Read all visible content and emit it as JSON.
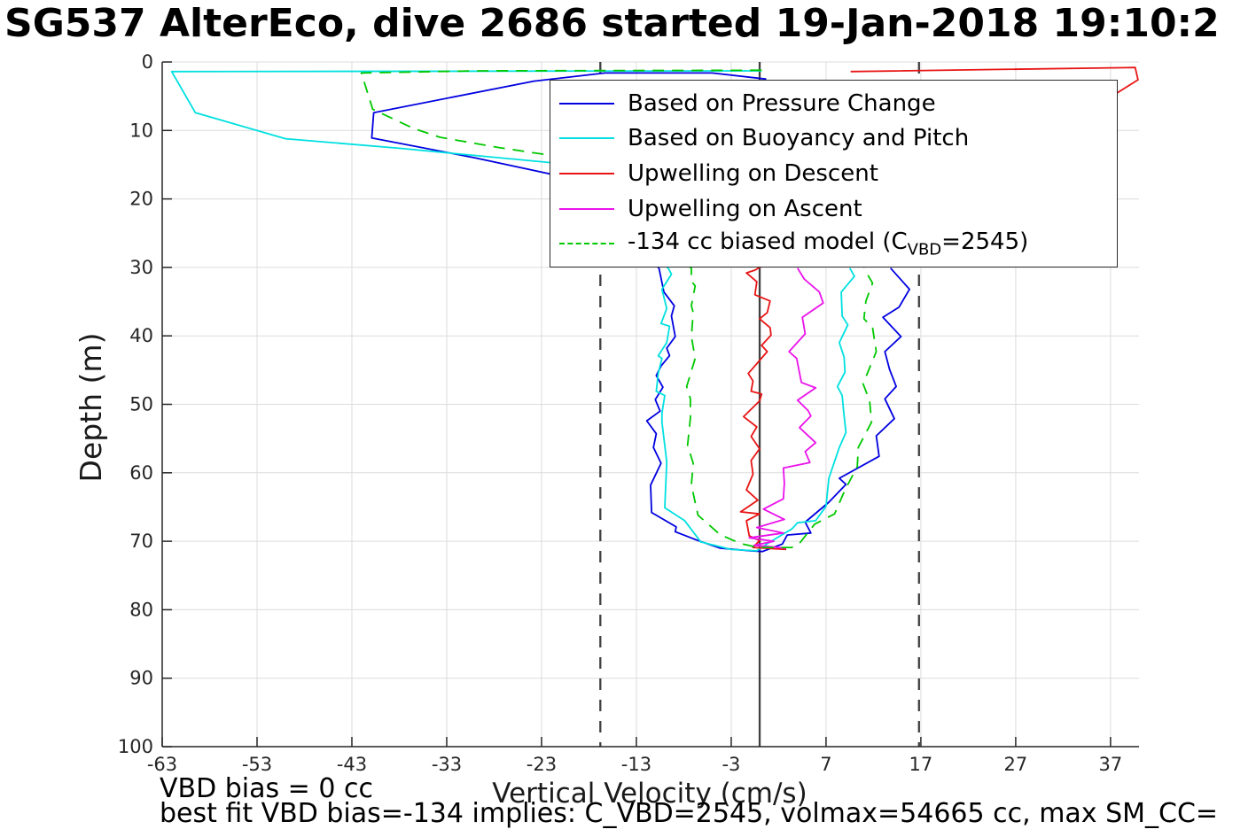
{
  "title": "SG537 AlterEco, dive 2686 started 19-Jan-2018 19:10:2",
  "annotations": {
    "vbd_bias": "VBD bias = 0 cc",
    "best_fit": "best fit VBD bias=-134 implies: C_VBD=2545, volmax=54665 cc, max SM_CC="
  },
  "chart_data": {
    "type": "line",
    "xlabel": "Vertical Velocity (cm/s)",
    "ylabel": "Depth (m)",
    "xlim": [
      -63,
      40
    ],
    "ylim": [
      0,
      100
    ],
    "xticks": [
      -63,
      -53,
      -43,
      -33,
      -23,
      -13,
      -3,
      7,
      17,
      27,
      37
    ],
    "yticks": [
      0,
      10,
      20,
      30,
      40,
      50,
      60,
      70,
      80,
      90,
      100
    ],
    "grid": true,
    "y_axis_reversed": true,
    "legend_position": "upper-right-inside",
    "colors": {
      "grid": "#dcdcdc",
      "axis": "#262626",
      "reference": "#404040"
    },
    "reference_lines": {
      "solid_x": 0,
      "dashed_x": [
        -16.8,
        16.8
      ]
    },
    "series": [
      {
        "key": "pressure",
        "name": "Based on Pressure Change",
        "color": "#0000e0",
        "dash": false,
        "points": [
          [
            0.7,
            2.5
          ],
          [
            -5,
            1.6
          ],
          [
            -16.3,
            1.6
          ],
          [
            -23.8,
            2.8
          ],
          [
            -40.7,
            7.4
          ],
          [
            -40.9,
            11.1
          ],
          [
            -30,
            14
          ],
          [
            -19.2,
            17.2
          ],
          [
            -13.5,
            24
          ],
          [
            -10.6,
            30.2
          ],
          [
            -10.1,
            33.6
          ],
          [
            -9,
            35.6
          ],
          [
            -9.3,
            37.1
          ],
          [
            -8.9,
            40.1
          ],
          [
            -9.8,
            41.8
          ],
          [
            -9.5,
            42.9
          ],
          [
            -10.4,
            44.4
          ],
          [
            -10.9,
            45.8
          ],
          [
            -10.2,
            47.5
          ],
          [
            -11,
            49.3
          ],
          [
            -10.5,
            51
          ],
          [
            -11.9,
            52.4
          ],
          [
            -10.9,
            54.3
          ],
          [
            -11.2,
            56.3
          ],
          [
            -10.4,
            58.6
          ],
          [
            -11.5,
            61.8
          ],
          [
            -11.4,
            65.8
          ],
          [
            -8.8,
            67.9
          ],
          [
            -8.9,
            68.6
          ],
          [
            -6.5,
            69.9
          ],
          [
            -4.2,
            71
          ],
          [
            -1,
            71.4
          ],
          [
            0.3,
            71.5
          ],
          [
            2.4,
            70.4
          ],
          [
            2.9,
            69.1
          ],
          [
            5.4,
            68.8
          ],
          [
            4.8,
            67.2
          ],
          [
            7.3,
            64.3
          ],
          [
            9.1,
            61.7
          ],
          [
            8.4,
            60.8
          ],
          [
            12.6,
            57.6
          ],
          [
            12.3,
            54.6
          ],
          [
            14.2,
            52.1
          ],
          [
            13.2,
            49.2
          ],
          [
            14.4,
            47.4
          ],
          [
            13.7,
            44.9
          ],
          [
            13.2,
            42.3
          ],
          [
            14.9,
            40.1
          ],
          [
            13,
            37.3
          ],
          [
            14.7,
            35.8
          ],
          [
            15.8,
            33.2
          ],
          [
            13.8,
            30.1
          ]
        ]
      },
      {
        "key": "buoyancy_pitch",
        "name": "Based on Buoyancy and Pitch",
        "color": "#00e0e0",
        "dash": false,
        "points": [
          [
            0.2,
            1.3
          ],
          [
            -62,
            1.4
          ],
          [
            -59.5,
            7.4
          ],
          [
            -50,
            11.2
          ],
          [
            -38,
            12.6
          ],
          [
            -19,
            15.1
          ],
          [
            -14.5,
            23
          ],
          [
            -9.6,
            30.2
          ],
          [
            -9.3,
            31
          ],
          [
            -10.3,
            33.2
          ],
          [
            -9.8,
            36
          ],
          [
            -10.4,
            38.2
          ],
          [
            -9.5,
            38.6
          ],
          [
            -9.8,
            41
          ],
          [
            -10.7,
            42.9
          ],
          [
            -10.3,
            43.3
          ],
          [
            -10.7,
            45.5
          ],
          [
            -10.9,
            48.1
          ],
          [
            -10,
            48.7
          ],
          [
            -10.3,
            51.3
          ],
          [
            -10.3,
            52.6
          ],
          [
            -9.8,
            58.4
          ],
          [
            -10,
            65.1
          ],
          [
            -7.9,
            67
          ],
          [
            -6.2,
            70.1
          ],
          [
            -3,
            71.2
          ],
          [
            -0.3,
            71.4
          ],
          [
            1.1,
            70.1
          ],
          [
            3.4,
            68.2
          ],
          [
            4,
            67.3
          ],
          [
            5.9,
            67
          ],
          [
            7,
            64.9
          ],
          [
            7.3,
            60.8
          ],
          [
            8.4,
            56.3
          ],
          [
            9.1,
            54.1
          ],
          [
            8.9,
            51.7
          ],
          [
            8.7,
            48.7
          ],
          [
            8.2,
            47.4
          ],
          [
            9,
            45.3
          ],
          [
            8.9,
            43.1
          ],
          [
            8.4,
            41
          ],
          [
            9.3,
            38.4
          ],
          [
            8.7,
            37.1
          ],
          [
            8.6,
            33.6
          ],
          [
            10,
            31.3
          ],
          [
            9.5,
            30.1
          ]
        ]
      },
      {
        "key": "upwelling_descent",
        "name": "Upwelling on Descent",
        "color": "#e81414",
        "dash": false,
        "points": [
          [
            9.6,
            1.4
          ],
          [
            39.6,
            0.8
          ],
          [
            39.9,
            2.6
          ],
          [
            36,
            6
          ],
          [
            20,
            16
          ],
          [
            5,
            26
          ],
          [
            -0.5,
            30.4
          ],
          [
            -1.4,
            30.8
          ],
          [
            -0.3,
            32.1
          ],
          [
            -0.5,
            34
          ],
          [
            1.1,
            34.9
          ],
          [
            0.8,
            36.6
          ],
          [
            0,
            37.5
          ],
          [
            1.1,
            38.8
          ],
          [
            1.2,
            39.9
          ],
          [
            0.2,
            41.4
          ],
          [
            0.8,
            42.3
          ],
          [
            -1.2,
            45.5
          ],
          [
            -0.7,
            46.6
          ],
          [
            -0.9,
            48.1
          ],
          [
            0.2,
            48.5
          ],
          [
            0,
            49.5
          ],
          [
            -1.7,
            51.8
          ],
          [
            -0.3,
            53.3
          ],
          [
            -0.9,
            54.7
          ],
          [
            0,
            56.5
          ],
          [
            -0.9,
            58.2
          ],
          [
            -0.7,
            60.2
          ],
          [
            -1.4,
            62.5
          ],
          [
            -0.2,
            64
          ],
          [
            -2,
            65.7
          ],
          [
            0,
            66
          ],
          [
            -1.4,
            67
          ],
          [
            -1.1,
            69.2
          ],
          [
            0,
            69.9
          ],
          [
            -0.7,
            70.9
          ],
          [
            2.8,
            71.2
          ]
        ]
      },
      {
        "key": "upwelling_ascent",
        "name": "Upwelling on Ascent",
        "color": "#ea12ea",
        "dash": false,
        "points": [
          [
            4,
            30.1
          ],
          [
            4.7,
            31.7
          ],
          [
            6.3,
            33.6
          ],
          [
            6.7,
            35.2
          ],
          [
            4.5,
            37.3
          ],
          [
            4.8,
            39.7
          ],
          [
            3.1,
            42.3
          ],
          [
            3.9,
            43.3
          ],
          [
            4.4,
            46.8
          ],
          [
            5.9,
            47.6
          ],
          [
            4,
            49.4
          ],
          [
            5.1,
            50.9
          ],
          [
            5.4,
            51.7
          ],
          [
            4.2,
            53.4
          ],
          [
            5.9,
            55.6
          ],
          [
            4.8,
            56.9
          ],
          [
            5.3,
            58.5
          ],
          [
            2.5,
            59.3
          ],
          [
            2.6,
            61.5
          ],
          [
            2.5,
            63.8
          ],
          [
            0.4,
            65.3
          ],
          [
            2.6,
            66.8
          ],
          [
            -0.3,
            68
          ],
          [
            2.5,
            68.8
          ],
          [
            -1.1,
            69.5
          ],
          [
            1.5,
            70
          ],
          [
            -0.6,
            70.6
          ],
          [
            2.8,
            71
          ]
        ]
      },
      {
        "key": "biased_model",
        "name": "-134 cc biased model (C_VBD=2545)",
        "name_parts": {
          "pre": "-134 cc biased model (C",
          "sub": "VBD",
          "post": "=2545)"
        },
        "color": "#00c800",
        "dash": true,
        "points": [
          [
            0.2,
            1.2
          ],
          [
            -30,
            1.3
          ],
          [
            -42,
            1.6
          ],
          [
            -40.8,
            6.9
          ],
          [
            -36.5,
            9.7
          ],
          [
            -33.7,
            11
          ],
          [
            -27.5,
            12.5
          ],
          [
            -22.2,
            13.6
          ],
          [
            -14,
            24
          ],
          [
            -7.2,
            30.1
          ],
          [
            -7.2,
            32
          ],
          [
            -6.8,
            32.7
          ],
          [
            -7.2,
            35.6
          ],
          [
            -7,
            36.6
          ],
          [
            -7.2,
            40.1
          ],
          [
            -6.8,
            43.3
          ],
          [
            -7.7,
            47.4
          ],
          [
            -7.3,
            49.2
          ],
          [
            -7.3,
            52
          ],
          [
            -7.6,
            56
          ],
          [
            -7,
            58.6
          ],
          [
            -7.2,
            61.8
          ],
          [
            -6.5,
            66.2
          ],
          [
            -4.2,
            69
          ],
          [
            -2.1,
            70.3
          ],
          [
            -0.2,
            70.9
          ],
          [
            2.1,
            70.9
          ],
          [
            3.4,
            70.9
          ],
          [
            4.2,
            70.3
          ],
          [
            5.8,
            67.5
          ],
          [
            7.9,
            66
          ],
          [
            9,
            62.5
          ],
          [
            10.3,
            59.1
          ],
          [
            10.4,
            56.3
          ],
          [
            11.8,
            52.6
          ],
          [
            11.6,
            49.5
          ],
          [
            10.9,
            47
          ],
          [
            12.3,
            42.3
          ],
          [
            11.9,
            38.8
          ],
          [
            11,
            37.5
          ],
          [
            11.2,
            34.9
          ],
          [
            11.9,
            32.3
          ],
          [
            11,
            30.1
          ]
        ]
      }
    ]
  }
}
